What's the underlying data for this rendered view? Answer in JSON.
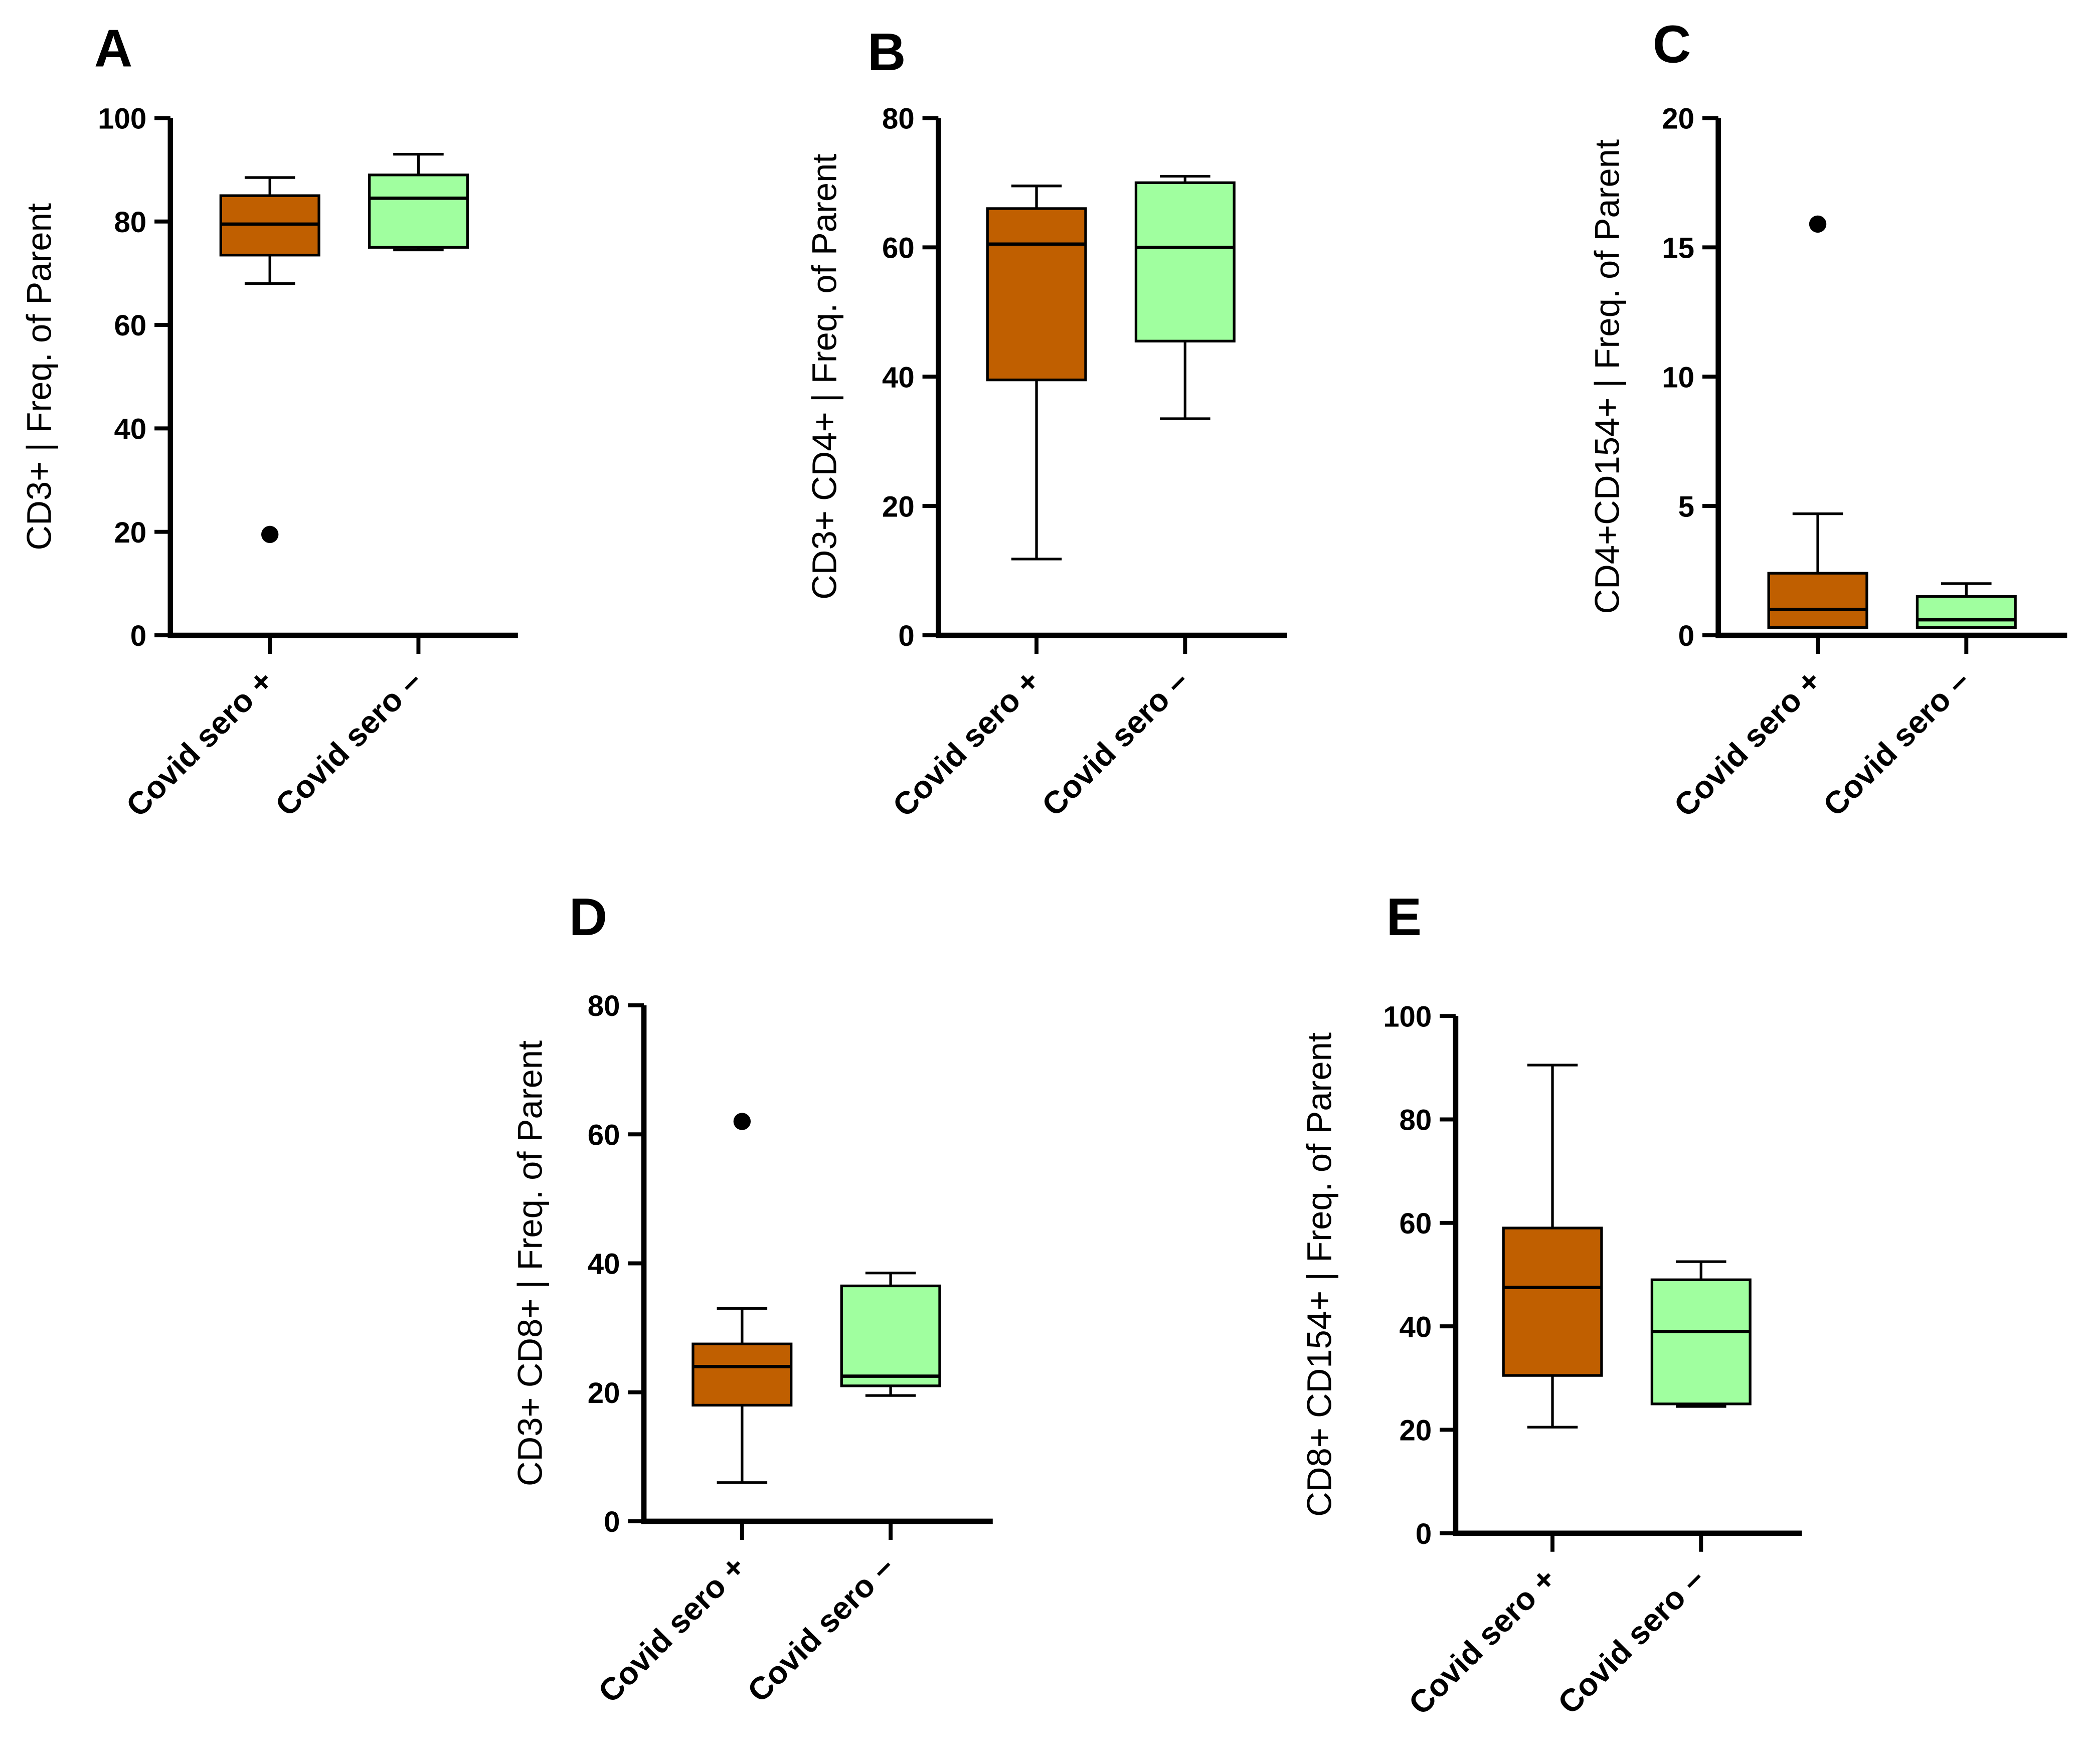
{
  "chart_data": [
    {
      "type": "box",
      "panel": "A",
      "ylabel": "CD3+ | Freq. of Parent",
      "ylim": [
        0,
        100
      ],
      "yticks": [
        0,
        20,
        40,
        60,
        80,
        100
      ],
      "categories": [
        "Covid sero +",
        "Covid sero –"
      ],
      "boxes": [
        {
          "min": 68,
          "q1": 73.5,
          "median": 79.5,
          "q3": 85,
          "max": 88.5,
          "outliers": [
            19.5
          ]
        },
        {
          "min": 74.5,
          "q1": 75,
          "median": 84.5,
          "q3": 89,
          "max": 93,
          "outliers": []
        }
      ]
    },
    {
      "type": "box",
      "panel": "B",
      "ylabel": "CD3+ CD4+ | Freq. of Parent",
      "ylim": [
        0,
        80
      ],
      "yticks": [
        0,
        20,
        40,
        60,
        80
      ],
      "categories": [
        "Covid sero +",
        "Covid sero –"
      ],
      "boxes": [
        {
          "min": 11.8,
          "q1": 39.5,
          "median": 60.5,
          "q3": 66,
          "max": 69.5,
          "outliers": []
        },
        {
          "min": 33.5,
          "q1": 45.5,
          "median": 60,
          "q3": 70,
          "max": 71,
          "outliers": []
        }
      ]
    },
    {
      "type": "box",
      "panel": "C",
      "ylabel": "CD4+CD154+ | Freq. of Parent",
      "ylim": [
        0,
        20
      ],
      "yticks": [
        0,
        5,
        10,
        15,
        20
      ],
      "categories": [
        "Covid sero +",
        "Covid sero –"
      ],
      "boxes": [
        {
          "min": 0.3,
          "q1": 0.3,
          "median": 1.0,
          "q3": 2.4,
          "max": 4.7,
          "outliers": [
            15.9
          ]
        },
        {
          "min": 0.3,
          "q1": 0.3,
          "median": 0.6,
          "q3": 1.5,
          "max": 2.0,
          "outliers": []
        }
      ]
    },
    {
      "type": "box",
      "panel": "D",
      "ylabel": "CD3+ CD8+ | Freq. of Parent",
      "ylim": [
        0,
        80
      ],
      "yticks": [
        0,
        20,
        40,
        60,
        80
      ],
      "categories": [
        "Covid sero +",
        "Covid sero –"
      ],
      "boxes": [
        {
          "min": 6,
          "q1": 18,
          "median": 24,
          "q3": 27.5,
          "max": 33,
          "outliers": [
            62
          ]
        },
        {
          "min": 19.5,
          "q1": 21,
          "median": 22.5,
          "q3": 36.5,
          "max": 38.5,
          "outliers": []
        }
      ]
    },
    {
      "type": "box",
      "panel": "E",
      "ylabel": "CD8+ CD154+ | Freq. of Parent",
      "ylim": [
        0,
        100
      ],
      "yticks": [
        0,
        20,
        40,
        60,
        80,
        100
      ],
      "categories": [
        "Covid sero +",
        "Covid sero –"
      ],
      "boxes": [
        {
          "min": 20.5,
          "q1": 30.5,
          "median": 47.5,
          "q3": 59,
          "max": 90.5,
          "outliers": []
        },
        {
          "min": 24.5,
          "q1": 25,
          "median": 39,
          "q3": 49,
          "max": 52.5,
          "outliers": []
        }
      ]
    }
  ],
  "colors": {
    "sero_pos": "#C05F00",
    "sero_neg": "#A0FF9F"
  }
}
